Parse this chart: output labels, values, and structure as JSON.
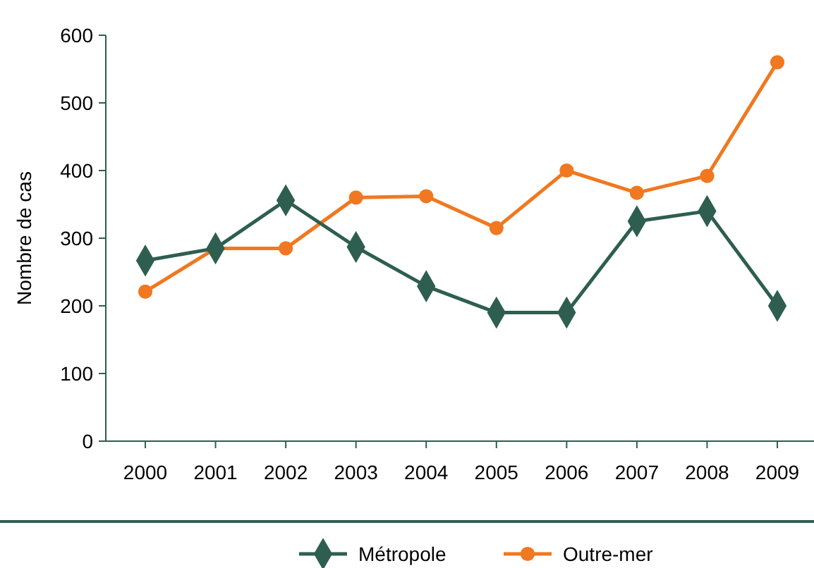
{
  "chart_data": {
    "type": "line",
    "ylabel": "Nombre de cas",
    "categories": [
      "2000",
      "2001",
      "2002",
      "2003",
      "2004",
      "2005",
      "2006",
      "2007",
      "2008",
      "2009"
    ],
    "series": [
      {
        "name": "Métropole",
        "color": "#2e5e50",
        "marker": "diamond",
        "values": [
          267,
          285,
          356,
          287,
          229,
          190,
          190,
          325,
          340,
          200
        ]
      },
      {
        "name": "Outre-mer",
        "color": "#f07820",
        "marker": "circle",
        "values": [
          221,
          285,
          285,
          360,
          362,
          315,
          400,
          367,
          392,
          560
        ]
      }
    ],
    "ylim": [
      0,
      600
    ],
    "yticks": [
      0,
      100,
      200,
      300,
      400,
      500,
      600
    ],
    "grid": false,
    "legend": "bottom",
    "line_style": "solid"
  }
}
